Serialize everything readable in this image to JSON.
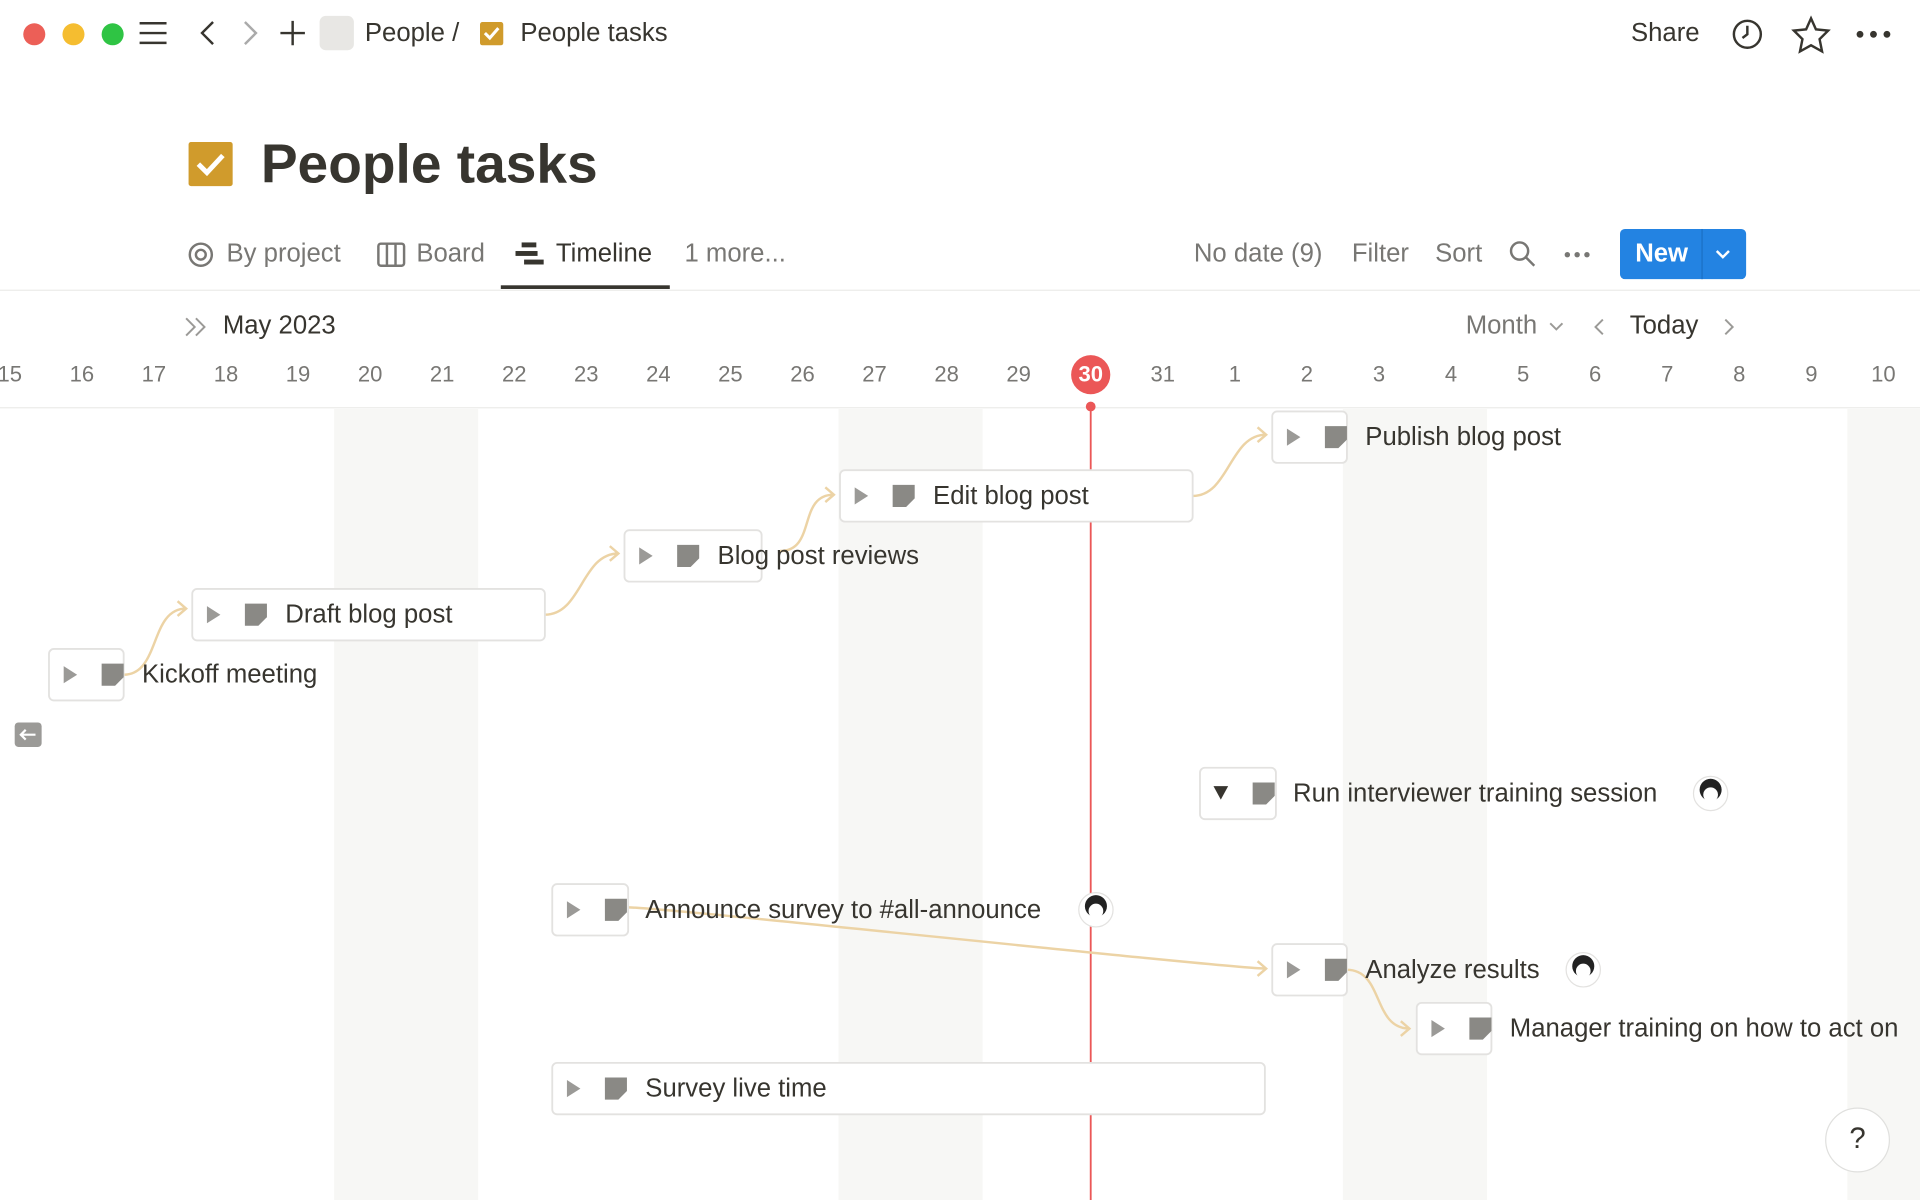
{
  "nav": {
    "breadcrumb": [
      "People /",
      "People tasks"
    ],
    "share": "Share"
  },
  "page": {
    "title": "People tasks"
  },
  "views": [
    "By project",
    "Board",
    "Timeline",
    "1 more..."
  ],
  "toolbar": {
    "no_date": "No date (9)",
    "filter": "Filter",
    "sort": "Sort",
    "new": "New"
  },
  "timeline": {
    "month": "May 2023",
    "scale": "Month",
    "today": "Today",
    "days": [
      15,
      16,
      17,
      18,
      19,
      20,
      21,
      22,
      23,
      24,
      25,
      26,
      27,
      28,
      29,
      30,
      31,
      1,
      2,
      3,
      4,
      5,
      6,
      7,
      8,
      9,
      10
    ],
    "tasks": [
      {
        "label": "Publish blog post"
      },
      {
        "label": "Edit blog post"
      },
      {
        "label": "Blog post reviews"
      },
      {
        "label": "Draft blog post"
      },
      {
        "label": "Kickoff meeting"
      },
      {
        "label": "Run interviewer training session"
      },
      {
        "label": "Announce survey to #all-announce"
      },
      {
        "label": "Analyze results"
      },
      {
        "label": "Manager training on how to act on"
      },
      {
        "label": "Survey live time"
      }
    ]
  },
  "help": "?"
}
